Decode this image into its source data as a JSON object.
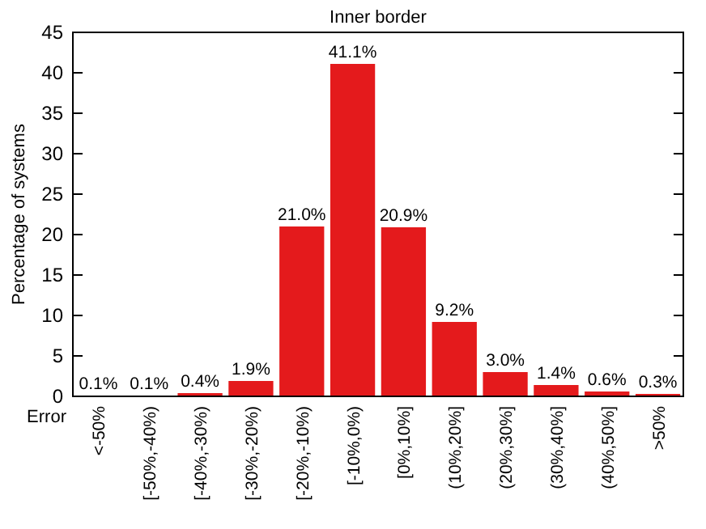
{
  "chart_data": {
    "type": "bar",
    "title": "Inner border",
    "xlabel": "Error",
    "ylabel": "Percentage of systems",
    "categories": [
      "<-50%",
      "[-50%,-40%)",
      "[-40%,-30%)",
      "[-30%,-20%)",
      "[-20%,-10%)",
      "[-10%,0%)",
      "[0%,10%]",
      "(10%,20%]",
      "(20%,30%]",
      "(30%,40%]",
      "(40%,50%]",
      ">50%"
    ],
    "values": [
      0.1,
      0.1,
      0.4,
      1.9,
      21.0,
      41.1,
      20.9,
      9.2,
      3.0,
      1.4,
      0.6,
      0.3
    ],
    "value_labels": [
      "0.1%",
      "0.1%",
      "0.4%",
      "1.9%",
      "21.0%",
      "41.1%",
      "20.9%",
      "9.2%",
      "3.0%",
      "1.4%",
      "0.6%",
      "0.3%"
    ],
    "color": "#e41a1c",
    "ylim": [
      0,
      45
    ],
    "yticks": [
      0,
      5,
      10,
      15,
      20,
      25,
      30,
      35,
      40,
      45
    ],
    "grid": false
  }
}
